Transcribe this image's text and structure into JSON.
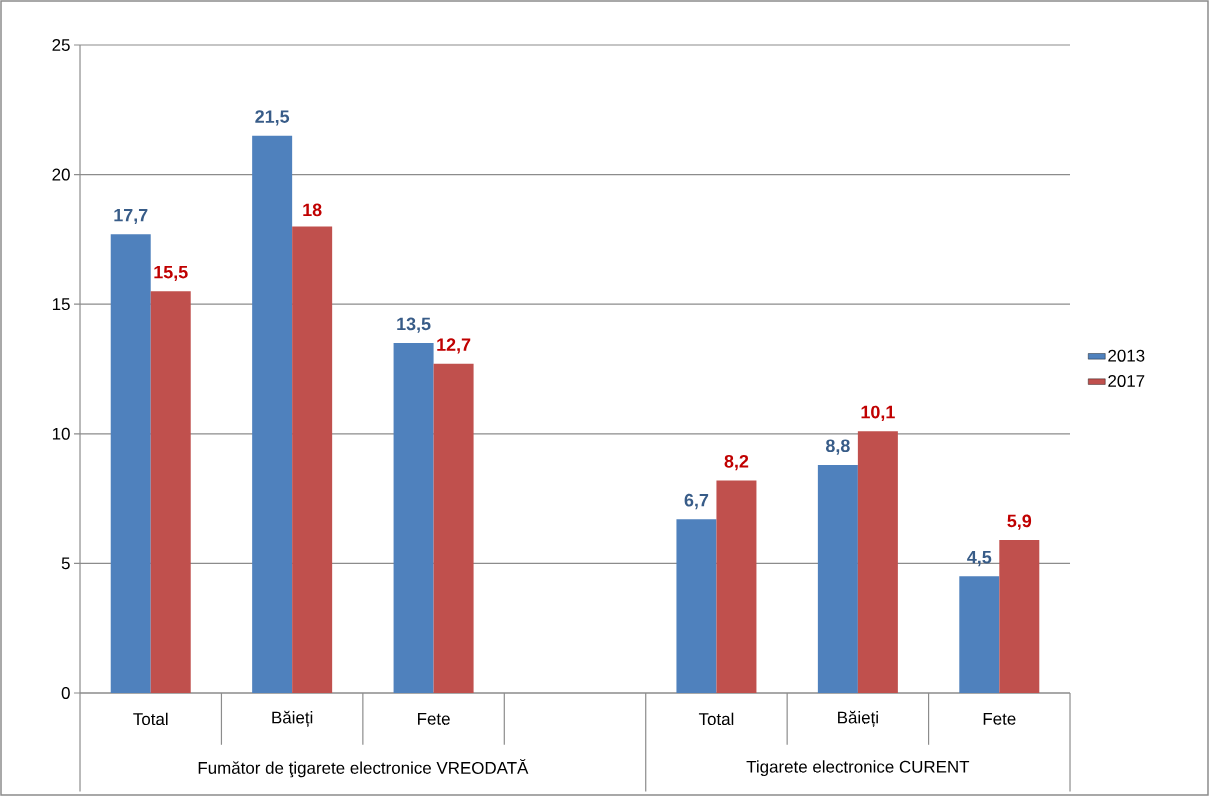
{
  "chart_data": {
    "type": "bar",
    "categories": [
      "Total",
      "Băieți",
      "Fete",
      null,
      "Total",
      "Băieți",
      "Fete"
    ],
    "series": [
      {
        "name": "2013",
        "color": "#4f81bd",
        "values": [
          17.7,
          21.5,
          13.5,
          null,
          6.7,
          8.8,
          4.5
        ],
        "value_labels": [
          "17,7",
          "21,5",
          "13,5",
          null,
          "6,7",
          "8,8",
          "4,5"
        ]
      },
      {
        "name": "2017",
        "color": "#c0504d",
        "values": [
          15.5,
          18,
          12.7,
          null,
          8.2,
          10.1,
          5.9
        ],
        "value_labels": [
          "15,5",
          "18",
          "12,7",
          null,
          "8,2",
          "10,1",
          "5,9"
        ]
      }
    ],
    "annotations": [
      "Fumător de ţigarete electronice VREODATĂ",
      "Tigarete electronice CURENT"
    ],
    "ylim": [
      0,
      25
    ],
    "yticks": [
      0,
      5,
      10,
      15,
      20,
      25
    ],
    "grid": "y",
    "legend": "right"
  }
}
